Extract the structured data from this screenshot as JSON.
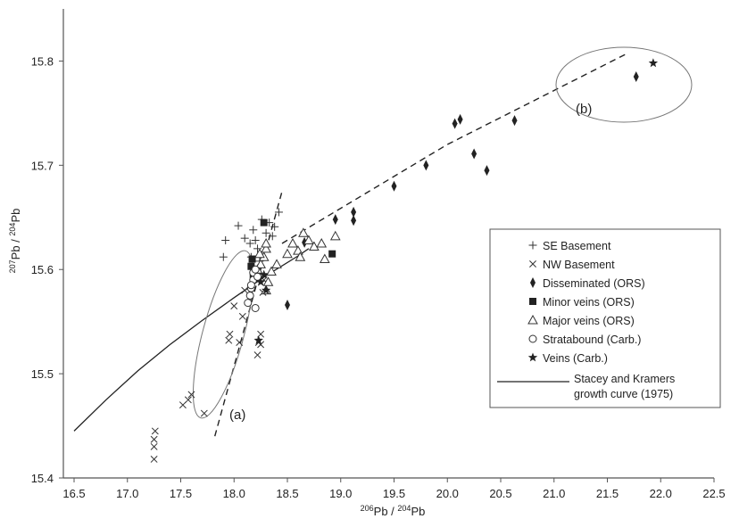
{
  "chart_data": {
    "type": "scatter",
    "title": "",
    "xlabel": {
      "pre": "206",
      "base": "Pb / ",
      "pre2": "204",
      "base2": "Pb"
    },
    "ylabel": {
      "pre": "207",
      "base": "Pb / ",
      "pre2": "204",
      "base2": "Pb"
    },
    "xlim": [
      16.5,
      22.5
    ],
    "ylim": [
      15.4,
      15.85
    ],
    "xticks": [
      "16.5",
      "17.0",
      "17.5",
      "18.0",
      "18.5",
      "19.0",
      "19.5",
      "20.0",
      "20.5",
      "21.0",
      "21.5",
      "22.0",
      "22.5"
    ],
    "yticks": [
      "15.4",
      "15.5",
      "15.6",
      "15.7",
      "15.8"
    ],
    "legend_position": "right",
    "series": [
      {
        "name": "SE Basement",
        "marker": "plus",
        "points": [
          [
            17.9,
            15.612
          ],
          [
            17.92,
            15.628
          ],
          [
            18.04,
            15.642
          ],
          [
            18.1,
            15.63
          ],
          [
            18.15,
            15.625
          ],
          [
            18.18,
            15.638
          ],
          [
            18.2,
            15.628
          ],
          [
            18.22,
            15.62
          ],
          [
            18.26,
            15.648
          ],
          [
            18.3,
            15.635
          ],
          [
            18.33,
            15.645
          ],
          [
            18.36,
            15.632
          ],
          [
            18.38,
            15.641
          ],
          [
            18.42,
            15.655
          ],
          [
            18.16,
            15.612
          ],
          [
            18.24,
            15.608
          ]
        ]
      },
      {
        "name": "NW Basement",
        "marker": "x",
        "points": [
          [
            17.25,
            15.418
          ],
          [
            17.25,
            15.43
          ],
          [
            17.25,
            15.437
          ],
          [
            17.26,
            15.445
          ],
          [
            17.52,
            15.47
          ],
          [
            17.57,
            15.475
          ],
          [
            17.6,
            15.48
          ],
          [
            17.72,
            15.462
          ],
          [
            17.95,
            15.532
          ],
          [
            17.96,
            15.538
          ],
          [
            18.0,
            15.565
          ],
          [
            18.05,
            15.53
          ],
          [
            18.08,
            15.555
          ],
          [
            18.1,
            15.58
          ],
          [
            18.22,
            15.518
          ],
          [
            18.23,
            15.53
          ],
          [
            18.25,
            15.528
          ],
          [
            18.25,
            15.538
          ],
          [
            18.27,
            15.578
          ],
          [
            18.28,
            15.59
          ]
        ]
      },
      {
        "name": "Disseminated (ORS)",
        "marker": "diamond",
        "points": [
          [
            18.5,
            15.566
          ],
          [
            18.66,
            15.626
          ],
          [
            18.95,
            15.648
          ],
          [
            19.12,
            15.647
          ],
          [
            19.12,
            15.655
          ],
          [
            19.5,
            15.68
          ],
          [
            19.8,
            15.7
          ],
          [
            20.07,
            15.74
          ],
          [
            20.12,
            15.744
          ],
          [
            20.25,
            15.711
          ],
          [
            20.37,
            15.695
          ],
          [
            20.63,
            15.743
          ],
          [
            21.77,
            15.785
          ]
        ]
      },
      {
        "name": "Minor veins (ORS)",
        "marker": "square",
        "points": [
          [
            18.16,
            15.603
          ],
          [
            18.17,
            15.61
          ],
          [
            18.28,
            15.645
          ],
          [
            18.92,
            15.615
          ],
          [
            18.18,
            15.595
          ]
        ]
      },
      {
        "name": "Major veins (ORS)",
        "marker": "triangle",
        "points": [
          [
            18.2,
            15.592
          ],
          [
            18.22,
            15.6
          ],
          [
            18.25,
            15.605
          ],
          [
            18.28,
            15.612
          ],
          [
            18.3,
            15.62
          ],
          [
            18.3,
            15.58
          ],
          [
            18.32,
            15.588
          ],
          [
            18.35,
            15.598
          ],
          [
            18.4,
            15.605
          ],
          [
            18.5,
            15.615
          ],
          [
            18.55,
            15.625
          ],
          [
            18.6,
            15.618
          ],
          [
            18.62,
            15.612
          ],
          [
            18.65,
            15.635
          ],
          [
            18.7,
            15.628
          ],
          [
            18.75,
            15.622
          ],
          [
            18.82,
            15.625
          ],
          [
            18.85,
            15.61
          ],
          [
            18.95,
            15.632
          ],
          [
            18.3,
            15.625
          ],
          [
            18.24,
            15.615
          ]
        ]
      },
      {
        "name": "Stratabound (Carb.)",
        "marker": "circle",
        "points": [
          [
            18.15,
            15.575
          ],
          [
            18.16,
            15.582
          ],
          [
            18.18,
            15.59
          ],
          [
            18.13,
            15.568
          ],
          [
            18.2,
            15.563
          ],
          [
            18.18,
            15.597
          ],
          [
            18.2,
            15.6
          ],
          [
            18.22,
            15.593
          ],
          [
            18.16,
            15.585
          ]
        ]
      },
      {
        "name": "Veins (Carb.)",
        "marker": "star",
        "points": [
          [
            18.23,
            15.532
          ],
          [
            18.25,
            15.588
          ],
          [
            18.28,
            15.595
          ],
          [
            18.3,
            15.58
          ],
          [
            21.93,
            15.798
          ]
        ]
      }
    ],
    "lines": [
      {
        "name": "Stacey and Kramers growth curve (1975)",
        "style": "solid",
        "points": [
          [
            16.5,
            15.445
          ],
          [
            16.8,
            15.475
          ],
          [
            17.1,
            15.503
          ],
          [
            17.4,
            15.528
          ],
          [
            17.7,
            15.551
          ],
          [
            18.0,
            15.573
          ],
          [
            18.3,
            15.594
          ],
          [
            18.6,
            15.613
          ],
          [
            18.7,
            15.62
          ]
        ]
      },
      {
        "name": "",
        "style": "dashed",
        "points": [
          [
            18.45,
            15.625
          ],
          [
            20.0,
            15.72
          ],
          [
            21.7,
            15.808
          ]
        ]
      },
      {
        "name": "",
        "style": "dashed",
        "points": [
          [
            17.82,
            15.44
          ],
          [
            18.45,
            15.675
          ]
        ]
      }
    ],
    "annotations": [
      "(a)",
      "(b)"
    ],
    "legend_growth_line1": "Stacey and Kramers",
    "legend_growth_line2": "growth curve (1975)"
  }
}
